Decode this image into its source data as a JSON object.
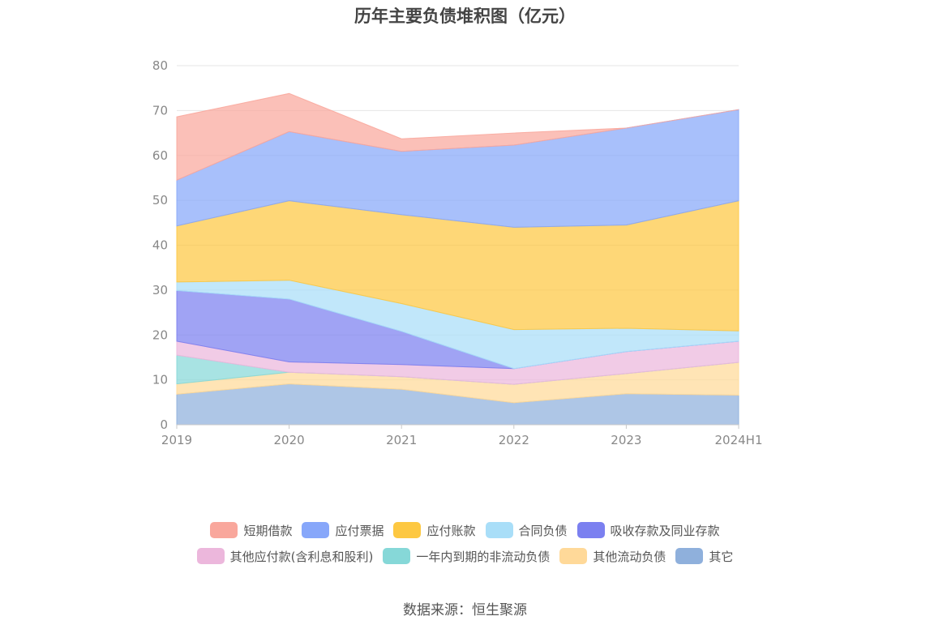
{
  "chart_data": {
    "type": "area",
    "stacked": true,
    "title": "历年主要负债堆积图（亿元）",
    "categories": [
      "2019",
      "2020",
      "2021",
      "2022",
      "2023",
      "2024H1"
    ],
    "ylim": [
      0,
      80
    ],
    "yticks": [
      0,
      10,
      20,
      30,
      40,
      50,
      60,
      70,
      80
    ],
    "grid": true,
    "legend_position": "bottom",
    "series": [
      {
        "name": "其它",
        "color": "#8fb0dc",
        "values": [
          6.8,
          9.1,
          7.9,
          4.9,
          6.9,
          6.6
        ]
      },
      {
        "name": "其他流动负债",
        "color": "#ffd999",
        "values": [
          2.3,
          2.6,
          2.8,
          4.1,
          4.5,
          7.3
        ]
      },
      {
        "name": "一年内到期的非流动负债",
        "color": "#86d8d8",
        "values": [
          6.4,
          0.0,
          0.0,
          0.0,
          0.0,
          0.0
        ]
      },
      {
        "name": "其他应付款(含利息和股利)",
        "color": "#ecb7dc",
        "values": [
          3.1,
          2.3,
          2.7,
          3.5,
          4.9,
          4.7
        ]
      },
      {
        "name": "吸收存款及同业存款",
        "color": "#7b80f0",
        "values": [
          11.3,
          14.0,
          7.4,
          0.0,
          0.0,
          0.0
        ]
      },
      {
        "name": "合同负债",
        "color": "#a9def8",
        "values": [
          1.9,
          4.2,
          6.2,
          8.7,
          5.2,
          2.3
        ]
      },
      {
        "name": "应付账款",
        "color": "#fdc842",
        "values": [
          12.5,
          17.7,
          19.8,
          22.8,
          23.0,
          29.0
        ]
      },
      {
        "name": "应付票据",
        "color": "#87a7fa",
        "values": [
          10.2,
          15.4,
          14.1,
          18.3,
          21.6,
          20.3
        ]
      },
      {
        "name": "短期借款",
        "color": "#f9a79c",
        "values": [
          14.1,
          8.5,
          2.8,
          2.7,
          0.0,
          0.0
        ]
      }
    ]
  },
  "legend": {
    "row1": [
      {
        "label": "短期借款",
        "color": "#f9a79c"
      },
      {
        "label": "应付票据",
        "color": "#87a7fa"
      },
      {
        "label": "应付账款",
        "color": "#fdc842"
      },
      {
        "label": "合同负债",
        "color": "#a9def8"
      },
      {
        "label": "吸收存款及同业存款",
        "color": "#7b80f0"
      }
    ],
    "row2": [
      {
        "label": "其他应付款(含利息和股利)",
        "color": "#ecb7dc"
      },
      {
        "label": "一年内到期的非流动负债",
        "color": "#86d8d8"
      },
      {
        "label": "其他流动负债",
        "color": "#ffd999"
      },
      {
        "label": "其它",
        "color": "#8fb0dc"
      }
    ]
  },
  "source": "数据来源：恒生聚源",
  "colors": {
    "grid": "#e6e6e6",
    "axis_label": "#888888",
    "axis_line": "#c9c9c9"
  }
}
